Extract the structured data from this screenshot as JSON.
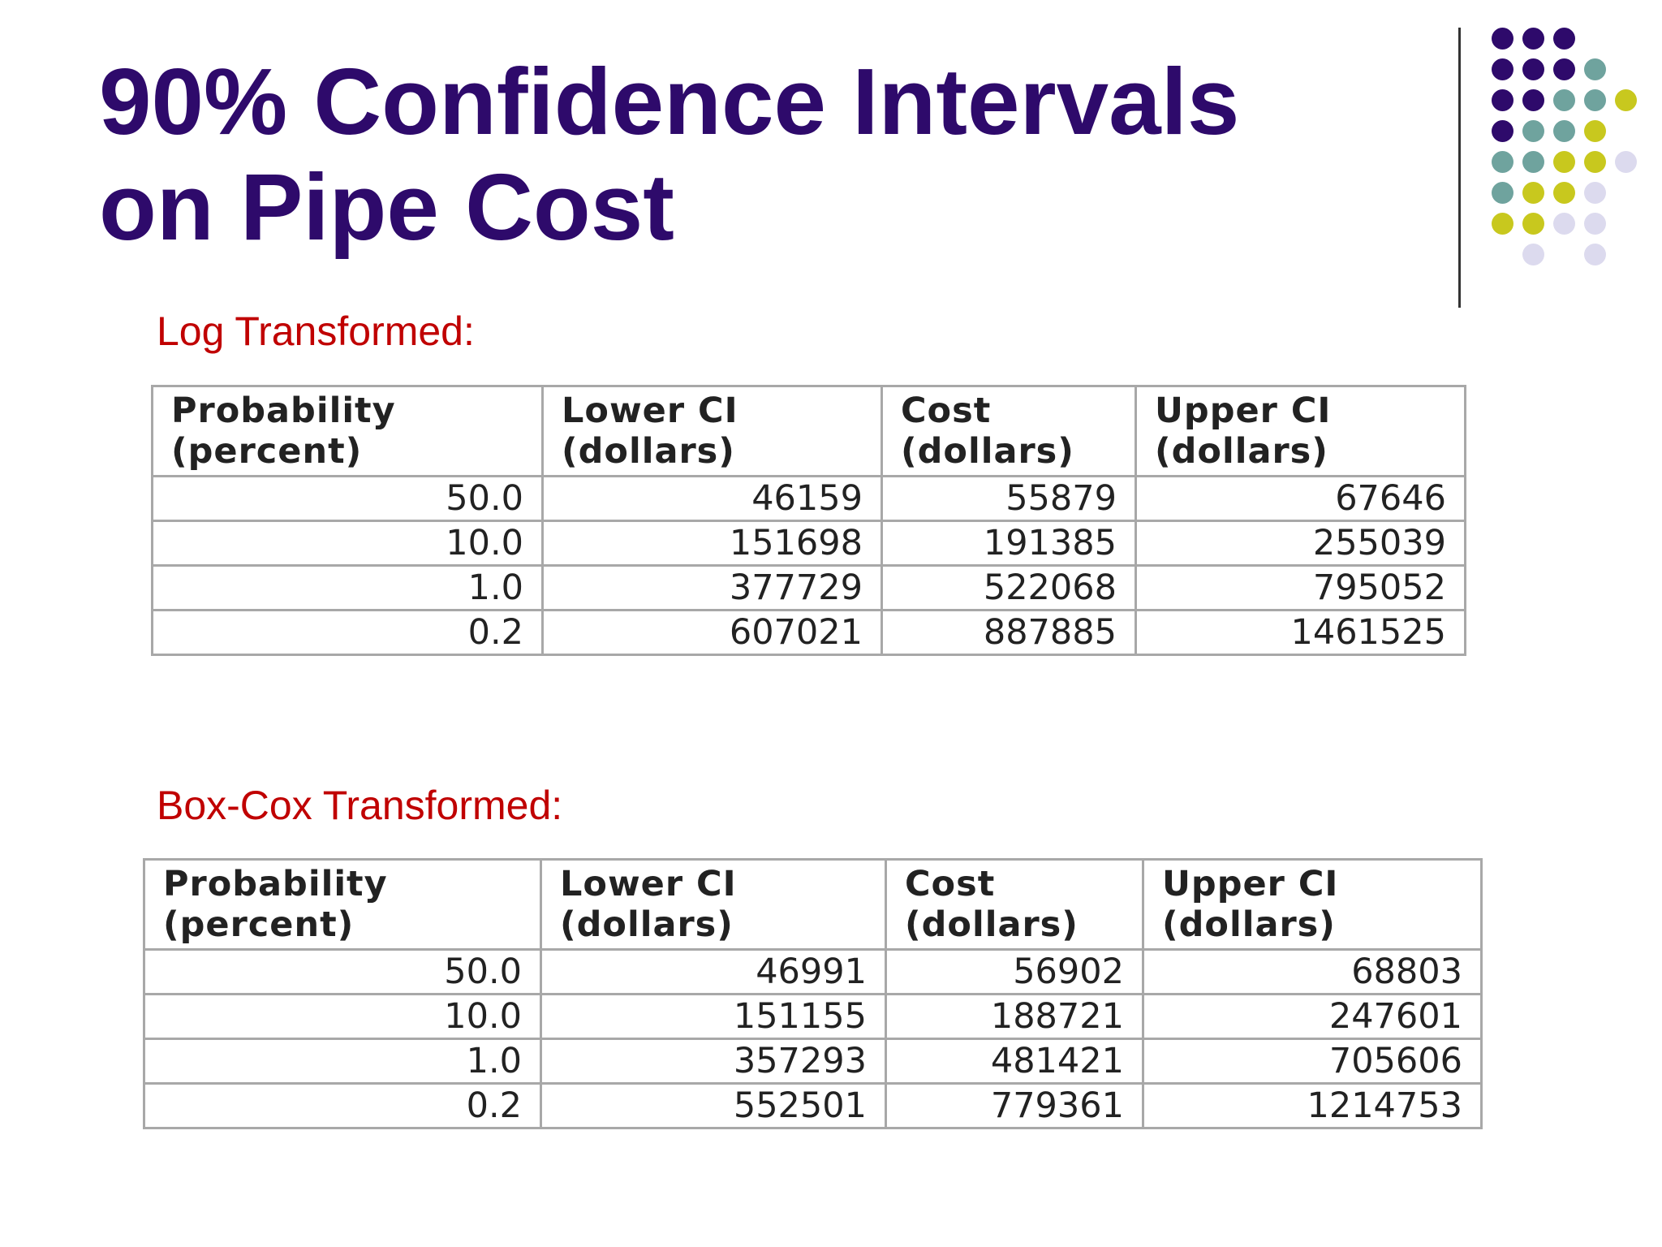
{
  "title": {
    "line1": "90% Confidence Intervals",
    "line2": "on Pipe Cost"
  },
  "decoration": {
    "colors": {
      "purple": "#2e0a6b",
      "teal": "#6fa39e",
      "yellow": "#c8c81e",
      "lavender": "#dcdaee"
    }
  },
  "tables": [
    {
      "label": "Log Transformed:",
      "headers": [
        [
          "Probability",
          "(percent)"
        ],
        [
          "Lower CI",
          "(dollars)"
        ],
        [
          "Cost",
          "(dollars)"
        ],
        [
          "Upper CI",
          "(dollars)"
        ]
      ],
      "rows": [
        [
          "50.0",
          "46159",
          "55879",
          "67646"
        ],
        [
          "10.0",
          "151698",
          "191385",
          "255039"
        ],
        [
          "1.0",
          "377729",
          "522068",
          "795052"
        ],
        [
          "0.2",
          "607021",
          "887885",
          "1461525"
        ]
      ]
    },
    {
      "label": "Box-Cox Transformed:",
      "headers": [
        [
          "Probability",
          "(percent)"
        ],
        [
          "Lower CI",
          "(dollars)"
        ],
        [
          "Cost",
          "(dollars)"
        ],
        [
          "Upper CI",
          "(dollars)"
        ]
      ],
      "rows": [
        [
          "50.0",
          "46991",
          "56902",
          "68803"
        ],
        [
          "10.0",
          "151155",
          "188721",
          "247601"
        ],
        [
          "1.0",
          "357293",
          "481421",
          "705606"
        ],
        [
          "0.2",
          "552501",
          "779361",
          "1214753"
        ]
      ]
    }
  ]
}
